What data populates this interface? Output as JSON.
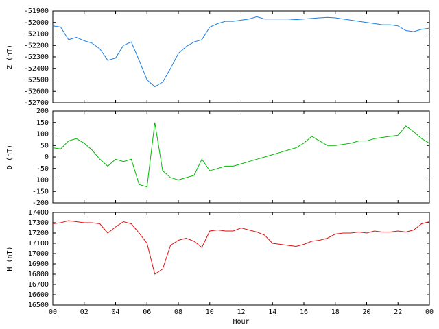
{
  "chart_data": [
    {
      "type": "line",
      "y_label": "Z (nT)",
      "color": "#1a7fe0",
      "x": [
        0,
        0.5,
        1,
        1.5,
        2,
        2.5,
        3,
        3.5,
        4,
        4.5,
        5,
        5.5,
        6,
        6.5,
        7,
        7.5,
        8,
        8.5,
        9,
        9.5,
        10,
        10.5,
        11,
        11.5,
        12,
        12.5,
        13,
        13.5,
        14,
        14.5,
        15,
        15.5,
        16,
        16.5,
        17,
        17.5,
        18,
        18.5,
        19,
        19.5,
        20,
        20.5,
        21,
        21.5,
        22,
        22.5,
        23,
        23.5,
        24
      ],
      "values": [
        -52030,
        -52040,
        -52150,
        -52130,
        -52160,
        -52180,
        -52230,
        -52330,
        -52310,
        -52200,
        -52170,
        -52330,
        -52500,
        -52560,
        -52520,
        -52400,
        -52270,
        -52210,
        -52170,
        -52150,
        -52040,
        -52010,
        -51990,
        -51990,
        -51980,
        -51970,
        -51950,
        -51970,
        -51970,
        -51970,
        -51970,
        -51975,
        -51970,
        -51965,
        -51960,
        -51955,
        -51960,
        -51970,
        -51980,
        -51990,
        -52000,
        -52010,
        -52020,
        -52020,
        -52030,
        -52070,
        -52080,
        -52060,
        -52050
      ],
      "xlim": [
        0,
        24
      ],
      "ylim": [
        -52700,
        -51900
      ],
      "yticks": [
        -52700,
        -52600,
        -52500,
        -52400,
        -52300,
        -52200,
        -52100,
        -52000,
        -51900
      ]
    },
    {
      "type": "line",
      "y_label": "D (nT)",
      "color": "#00bb00",
      "x": [
        0,
        0.5,
        1,
        1.5,
        2,
        2.5,
        3,
        3.5,
        4,
        4.5,
        5,
        5.5,
        6,
        6.5,
        7,
        7.5,
        8,
        8.5,
        9,
        9.5,
        10,
        10.5,
        11,
        11.5,
        12,
        12.5,
        13,
        13.5,
        14,
        14.5,
        15,
        15.5,
        16,
        16.5,
        17,
        17.5,
        18,
        18.5,
        19,
        19.5,
        20,
        20.5,
        21,
        21.5,
        22,
        22.5,
        23,
        23.5,
        24
      ],
      "values": [
        40,
        35,
        70,
        80,
        60,
        30,
        -10,
        -40,
        -10,
        -20,
        -10,
        -120,
        -130,
        150,
        -60,
        -90,
        -100,
        -90,
        -80,
        -10,
        -60,
        -50,
        -40,
        -40,
        -30,
        -20,
        -10,
        0,
        10,
        20,
        30,
        40,
        60,
        90,
        70,
        50,
        50,
        55,
        60,
        70,
        70,
        80,
        85,
        90,
        95,
        135,
        110,
        80,
        60
      ],
      "xlim": [
        0,
        24
      ],
      "ylim": [
        -200,
        200
      ],
      "yticks": [
        -200,
        -150,
        -100,
        -50,
        0,
        50,
        100,
        150,
        200
      ]
    },
    {
      "type": "line",
      "y_label": "H (nT)",
      "x_label": "Hour",
      "color": "#e01010",
      "x": [
        0,
        0.5,
        1,
        1.5,
        2,
        2.5,
        3,
        3.5,
        4,
        4.5,
        5,
        5.5,
        6,
        6.5,
        7,
        7.5,
        8,
        8.5,
        9,
        9.5,
        10,
        10.5,
        11,
        11.5,
        12,
        12.5,
        13,
        13.5,
        14,
        14.5,
        15,
        15.5,
        16,
        16.5,
        17,
        17.5,
        18,
        18.5,
        19,
        19.5,
        20,
        20.5,
        21,
        21.5,
        22,
        22.5,
        23,
        23.5,
        24
      ],
      "values": [
        17290,
        17300,
        17320,
        17310,
        17300,
        17300,
        17290,
        17200,
        17260,
        17310,
        17290,
        17200,
        17100,
        16800,
        16850,
        17080,
        17130,
        17150,
        17120,
        17060,
        17220,
        17230,
        17220,
        17220,
        17250,
        17230,
        17210,
        17180,
        17100,
        17090,
        17080,
        17070,
        17090,
        17120,
        17130,
        17150,
        17190,
        17200,
        17200,
        17210,
        17200,
        17220,
        17210,
        17210,
        17220,
        17210,
        17230,
        17290,
        17310
      ],
      "xlim": [
        0,
        24
      ],
      "ylim": [
        16500,
        17400
      ],
      "yticks": [
        16500,
        16600,
        16700,
        16800,
        16900,
        17000,
        17100,
        17200,
        17300,
        17400
      ],
      "xticks": [
        {
          "value": 0,
          "label": "00"
        },
        {
          "value": 2,
          "label": "02"
        },
        {
          "value": 4,
          "label": "04"
        },
        {
          "value": 6,
          "label": "06"
        },
        {
          "value": 8,
          "label": "08"
        },
        10,
        12,
        14,
        16,
        18,
        20,
        22,
        {
          "value": 24,
          "label": "00"
        }
      ]
    }
  ]
}
